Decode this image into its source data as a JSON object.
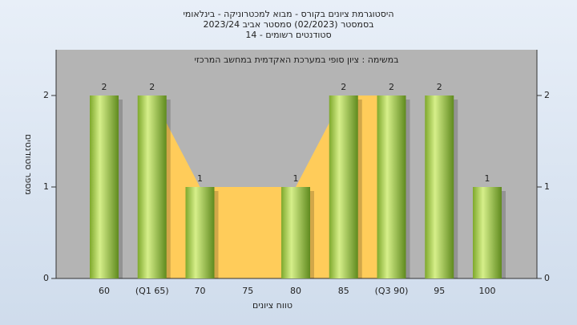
{
  "chart_data": {
    "type": "bar",
    "title": "היסטוגרמת ציונים בקורס - מבוא למכטרוניקה - בינלאומי",
    "subtitle_lines": [
      "בסמסטר  (02/2023)  סמסטר אביב 2023/24",
      "סטודנטים רשומים - 14"
    ],
    "annotation": "במשימה : ציון סופי במערכת האקדמית במחשב המרכזי",
    "x_label": "טווח ציונים",
    "y_label": "מספר סטודנטים",
    "categories": [
      "60",
      "(Q1 65)",
      "70",
      "75",
      "80",
      "85",
      "(Q3 90)",
      "95",
      "100"
    ],
    "values": [
      2,
      2,
      1,
      null,
      1,
      2,
      2,
      2,
      1
    ],
    "color": "#8fc03a",
    "area_values": [
      null,
      2,
      1,
      1,
      1,
      2,
      2,
      null,
      null
    ],
    "area_color": "#ffcc5a",
    "ylim": [
      0,
      2.5
    ],
    "yticks": [
      0,
      1,
      2
    ],
    "plot_color": "#b4b4b4"
  }
}
